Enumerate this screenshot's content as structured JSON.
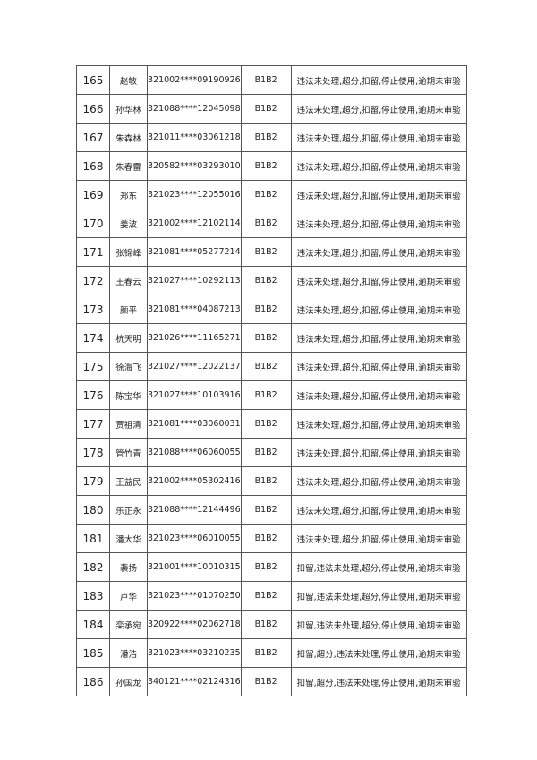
{
  "rows": [
    {
      "no": "165",
      "name": "赵敏",
      "id": "321002****09190926",
      "type": "B1B2",
      "status": "违法未处理,超分,扣留,停止使用,逾期未审验"
    },
    {
      "no": "166",
      "name": "孙华林",
      "id": "321088****12045098",
      "type": "B1B2",
      "status": "违法未处理,超分,扣留,停止使用,逾期未审验"
    },
    {
      "no": "167",
      "name": "朱森林",
      "id": "321011****03061218",
      "type": "B1B2",
      "status": "违法未处理,超分,扣留,停止使用,逾期未审验"
    },
    {
      "no": "168",
      "name": "朱春雷",
      "id": "320582****03293010",
      "type": "B1B2",
      "status": "违法未处理,超分,扣留,停止使用,逾期未审验"
    },
    {
      "no": "169",
      "name": "郑东",
      "id": "321023****12055016",
      "type": "B1B2",
      "status": "违法未处理,超分,扣留,停止使用,逾期未审验"
    },
    {
      "no": "170",
      "name": "姜波",
      "id": "321002****12102114",
      "type": "B1B2",
      "status": "违法未处理,超分,扣留,停止使用,逾期未审验"
    },
    {
      "no": "171",
      "name": "张锦峰",
      "id": "321081****05277214",
      "type": "B1B2",
      "status": "违法未处理,超分,扣留,停止使用,逾期未审验"
    },
    {
      "no": "172",
      "name": "王春云",
      "id": "321027****10292113",
      "type": "B1B2",
      "status": "违法未处理,超分,扣留,停止使用,逾期未审验"
    },
    {
      "no": "173",
      "name": "颜平",
      "id": "321081****04087213",
      "type": "B1B2",
      "status": "违法未处理,超分,扣留,停止使用,逾期未审验"
    },
    {
      "no": "174",
      "name": "杭天明",
      "id": "321026****11165271",
      "type": "B1B2",
      "status": "违法未处理,超分,扣留,停止使用,逾期未审验"
    },
    {
      "no": "175",
      "name": "徐海飞",
      "id": "321027****12022137",
      "type": "B1B2",
      "status": "违法未处理,超分,扣留,停止使用,逾期未审验"
    },
    {
      "no": "176",
      "name": "陈宝华",
      "id": "321027****10103916",
      "type": "B1B2",
      "status": "违法未处理,超分,扣留,停止使用,逾期未审验"
    },
    {
      "no": "177",
      "name": "贾祖清",
      "id": "321081****03060031",
      "type": "B1B2",
      "status": "违法未处理,超分,扣留,停止使用,逾期未审验"
    },
    {
      "no": "178",
      "name": "管竹青",
      "id": "321088****06060055",
      "type": "B1B2",
      "status": "违法未处理,超分,扣留,停止使用,逾期未审验"
    },
    {
      "no": "179",
      "name": "王益民",
      "id": "321002****05302416",
      "type": "B1B2",
      "status": "违法未处理,超分,扣留,停止使用,逾期未审验"
    },
    {
      "no": "180",
      "name": "乐正永",
      "id": "321088****12144496",
      "type": "B1B2",
      "status": "违法未处理,超分,扣留,停止使用,逾期未审验"
    },
    {
      "no": "181",
      "name": "潘大华",
      "id": "321023****06010055",
      "type": "B1B2",
      "status": "违法未处理,超分,扣留,停止使用,逾期未审验"
    },
    {
      "no": "182",
      "name": "裴扬",
      "id": "321001****10010315",
      "type": "B1B2",
      "status": "扣留,违法未处理,超分,停止使用,逾期未审验"
    },
    {
      "no": "183",
      "name": "卢华",
      "id": "321023****01070250",
      "type": "B1B2",
      "status": "扣留,违法未处理,超分,停止使用,逾期未审验"
    },
    {
      "no": "184",
      "name": "栾承宛",
      "id": "320922****02062718",
      "type": "B1B2",
      "status": "扣留,违法未处理,超分,停止使用,逾期未审验"
    },
    {
      "no": "185",
      "name": "潘浩",
      "id": "321023****03210235",
      "type": "B1B2",
      "status": "扣留,超分,违法未处理,停止使用,逾期未审验"
    },
    {
      "no": "186",
      "name": "孙国龙",
      "id": "340121****02124316",
      "type": "B1B2",
      "status": "扣留,超分,违法未处理,停止使用,逾期未审验"
    }
  ]
}
